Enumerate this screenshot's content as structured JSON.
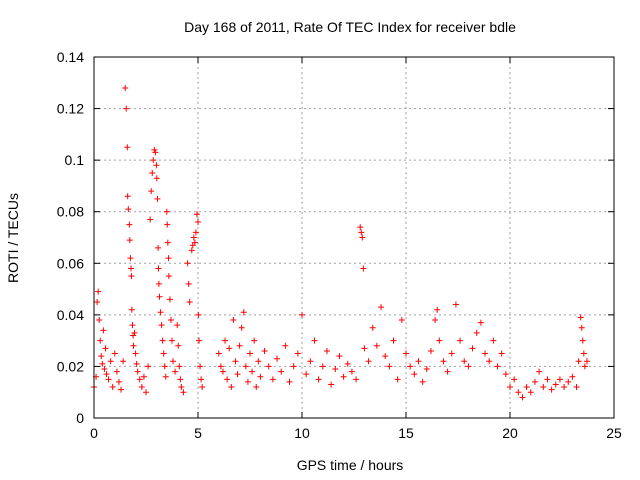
{
  "chart_data": {
    "type": "scatter",
    "title": "Day 168 of 2011, Rate Of TEC Index for receiver bdle",
    "xlabel": "GPS time / hours",
    "ylabel": "ROTI / TECUs",
    "xlim": [
      0,
      25
    ],
    "ylim": [
      0,
      0.14
    ],
    "x_ticks": [
      0,
      5,
      10,
      15,
      20,
      25
    ],
    "x_tick_labels": [
      "0",
      "5",
      "10",
      "15",
      "20",
      "25"
    ],
    "y_ticks": [
      0,
      0.02,
      0.04,
      0.06,
      0.08,
      0.1,
      0.12,
      0.14
    ],
    "y_tick_labels": [
      "0",
      "0.02",
      "0.04",
      "0.06",
      "0.08",
      "0.1",
      "0.12",
      "0.14"
    ],
    "grid": true,
    "marker": "plus",
    "color": "#ff0000",
    "series": [
      {
        "name": "ROTI",
        "points": [
          [
            0.0,
            0.012
          ],
          [
            0.1,
            0.016
          ],
          [
            0.15,
            0.045
          ],
          [
            0.2,
            0.049
          ],
          [
            0.25,
            0.038
          ],
          [
            0.3,
            0.03
          ],
          [
            0.35,
            0.024
          ],
          [
            0.4,
            0.021
          ],
          [
            0.45,
            0.034
          ],
          [
            0.5,
            0.019
          ],
          [
            0.55,
            0.027
          ],
          [
            0.6,
            0.017
          ],
          [
            0.7,
            0.015
          ],
          [
            0.8,
            0.022
          ],
          [
            0.9,
            0.012
          ],
          [
            1.0,
            0.025
          ],
          [
            1.1,
            0.018
          ],
          [
            1.2,
            0.014
          ],
          [
            1.3,
            0.011
          ],
          [
            1.4,
            0.022
          ],
          [
            1.5,
            0.128
          ],
          [
            1.55,
            0.12
          ],
          [
            1.6,
            0.105
          ],
          [
            1.62,
            0.086
          ],
          [
            1.65,
            0.081
          ],
          [
            1.7,
            0.075
          ],
          [
            1.72,
            0.069
          ],
          [
            1.75,
            0.062
          ],
          [
            1.78,
            0.058
          ],
          [
            1.8,
            0.055
          ],
          [
            1.82,
            0.042
          ],
          [
            1.85,
            0.036
          ],
          [
            1.88,
            0.032
          ],
          [
            1.9,
            0.028
          ],
          [
            1.95,
            0.033
          ],
          [
            2.0,
            0.025
          ],
          [
            2.05,
            0.021
          ],
          [
            2.1,
            0.018
          ],
          [
            2.2,
            0.015
          ],
          [
            2.3,
            0.012
          ],
          [
            2.4,
            0.016
          ],
          [
            2.5,
            0.01
          ],
          [
            2.6,
            0.02
          ],
          [
            2.7,
            0.077
          ],
          [
            2.75,
            0.088
          ],
          [
            2.8,
            0.095
          ],
          [
            2.85,
            0.1
          ],
          [
            2.9,
            0.104
          ],
          [
            2.95,
            0.103
          ],
          [
            3.0,
            0.098
          ],
          [
            3.02,
            0.093
          ],
          [
            3.05,
            0.085
          ],
          [
            3.08,
            0.066
          ],
          [
            3.1,
            0.058
          ],
          [
            3.12,
            0.052
          ],
          [
            3.15,
            0.047
          ],
          [
            3.2,
            0.041
          ],
          [
            3.25,
            0.036
          ],
          [
            3.3,
            0.03
          ],
          [
            3.35,
            0.025
          ],
          [
            3.4,
            0.02
          ],
          [
            3.45,
            0.016
          ],
          [
            3.5,
            0.08
          ],
          [
            3.52,
            0.075
          ],
          [
            3.55,
            0.068
          ],
          [
            3.58,
            0.062
          ],
          [
            3.6,
            0.055
          ],
          [
            3.65,
            0.046
          ],
          [
            3.7,
            0.038
          ],
          [
            3.75,
            0.03
          ],
          [
            3.8,
            0.022
          ],
          [
            3.9,
            0.018
          ],
          [
            4.0,
            0.036
          ],
          [
            4.05,
            0.028
          ],
          [
            4.1,
            0.02
          ],
          [
            4.15,
            0.015
          ],
          [
            4.2,
            0.012
          ],
          [
            4.3,
            0.01
          ],
          [
            4.5,
            0.06
          ],
          [
            4.55,
            0.052
          ],
          [
            4.6,
            0.045
          ],
          [
            4.7,
            0.065
          ],
          [
            4.75,
            0.067
          ],
          [
            4.8,
            0.07
          ],
          [
            4.85,
            0.068
          ],
          [
            4.9,
            0.072
          ],
          [
            4.95,
            0.079
          ],
          [
            5.0,
            0.076
          ],
          [
            5.02,
            0.04
          ],
          [
            5.05,
            0.03
          ],
          [
            5.1,
            0.02
          ],
          [
            5.15,
            0.015
          ],
          [
            5.2,
            0.012
          ],
          [
            6.0,
            0.025
          ],
          [
            6.1,
            0.02
          ],
          [
            6.2,
            0.018
          ],
          [
            6.3,
            0.03
          ],
          [
            6.4,
            0.015
          ],
          [
            6.5,
            0.027
          ],
          [
            6.6,
            0.012
          ],
          [
            6.7,
            0.038
          ],
          [
            6.8,
            0.022
          ],
          [
            6.9,
            0.017
          ],
          [
            7.0,
            0.028
          ],
          [
            7.1,
            0.035
          ],
          [
            7.2,
            0.041
          ],
          [
            7.3,
            0.02
          ],
          [
            7.4,
            0.014
          ],
          [
            7.5,
            0.025
          ],
          [
            7.6,
            0.018
          ],
          [
            7.7,
            0.03
          ],
          [
            7.8,
            0.012
          ],
          [
            7.9,
            0.022
          ],
          [
            8.0,
            0.016
          ],
          [
            8.2,
            0.026
          ],
          [
            8.4,
            0.02
          ],
          [
            8.6,
            0.015
          ],
          [
            8.8,
            0.023
          ],
          [
            9.0,
            0.018
          ],
          [
            9.2,
            0.028
          ],
          [
            9.4,
            0.014
          ],
          [
            9.6,
            0.02
          ],
          [
            9.8,
            0.025
          ],
          [
            10.0,
            0.04
          ],
          [
            10.2,
            0.017
          ],
          [
            10.4,
            0.022
          ],
          [
            10.6,
            0.03
          ],
          [
            10.8,
            0.015
          ],
          [
            11.0,
            0.02
          ],
          [
            11.2,
            0.026
          ],
          [
            11.4,
            0.013
          ],
          [
            11.6,
            0.019
          ],
          [
            11.8,
            0.024
          ],
          [
            12.0,
            0.016
          ],
          [
            12.2,
            0.021
          ],
          [
            12.4,
            0.018
          ],
          [
            12.6,
            0.015
          ],
          [
            12.8,
            0.074
          ],
          [
            12.85,
            0.072
          ],
          [
            12.9,
            0.07
          ],
          [
            12.95,
            0.058
          ],
          [
            13.0,
            0.027
          ],
          [
            13.2,
            0.022
          ],
          [
            13.4,
            0.035
          ],
          [
            13.6,
            0.028
          ],
          [
            13.8,
            0.043
          ],
          [
            14.0,
            0.024
          ],
          [
            14.2,
            0.02
          ],
          [
            14.4,
            0.03
          ],
          [
            14.6,
            0.015
          ],
          [
            14.8,
            0.038
          ],
          [
            15.0,
            0.025
          ],
          [
            15.2,
            0.02
          ],
          [
            15.4,
            0.017
          ],
          [
            15.6,
            0.022
          ],
          [
            15.8,
            0.014
          ],
          [
            16.0,
            0.019
          ],
          [
            16.2,
            0.026
          ],
          [
            16.4,
            0.038
          ],
          [
            16.5,
            0.042
          ],
          [
            16.6,
            0.03
          ],
          [
            16.8,
            0.022
          ],
          [
            17.0,
            0.018
          ],
          [
            17.2,
            0.025
          ],
          [
            17.4,
            0.044
          ],
          [
            17.6,
            0.03
          ],
          [
            17.8,
            0.022
          ],
          [
            18.0,
            0.02
          ],
          [
            18.2,
            0.027
          ],
          [
            18.4,
            0.033
          ],
          [
            18.6,
            0.037
          ],
          [
            18.8,
            0.025
          ],
          [
            19.0,
            0.022
          ],
          [
            19.2,
            0.03
          ],
          [
            19.4,
            0.02
          ],
          [
            19.6,
            0.025
          ],
          [
            19.8,
            0.017
          ],
          [
            20.0,
            0.012
          ],
          [
            20.2,
            0.015
          ],
          [
            20.4,
            0.01
          ],
          [
            20.6,
            0.008
          ],
          [
            20.8,
            0.012
          ],
          [
            21.0,
            0.01
          ],
          [
            21.2,
            0.014
          ],
          [
            21.4,
            0.018
          ],
          [
            21.6,
            0.012
          ],
          [
            21.8,
            0.015
          ],
          [
            22.0,
            0.011
          ],
          [
            22.2,
            0.013
          ],
          [
            22.4,
            0.015
          ],
          [
            22.6,
            0.012
          ],
          [
            22.8,
            0.014
          ],
          [
            23.0,
            0.016
          ],
          [
            23.2,
            0.012
          ],
          [
            23.3,
            0.022
          ],
          [
            23.4,
            0.039
          ],
          [
            23.45,
            0.035
          ],
          [
            23.5,
            0.03
          ],
          [
            23.55,
            0.025
          ],
          [
            23.6,
            0.02
          ],
          [
            23.7,
            0.022
          ]
        ]
      }
    ]
  }
}
